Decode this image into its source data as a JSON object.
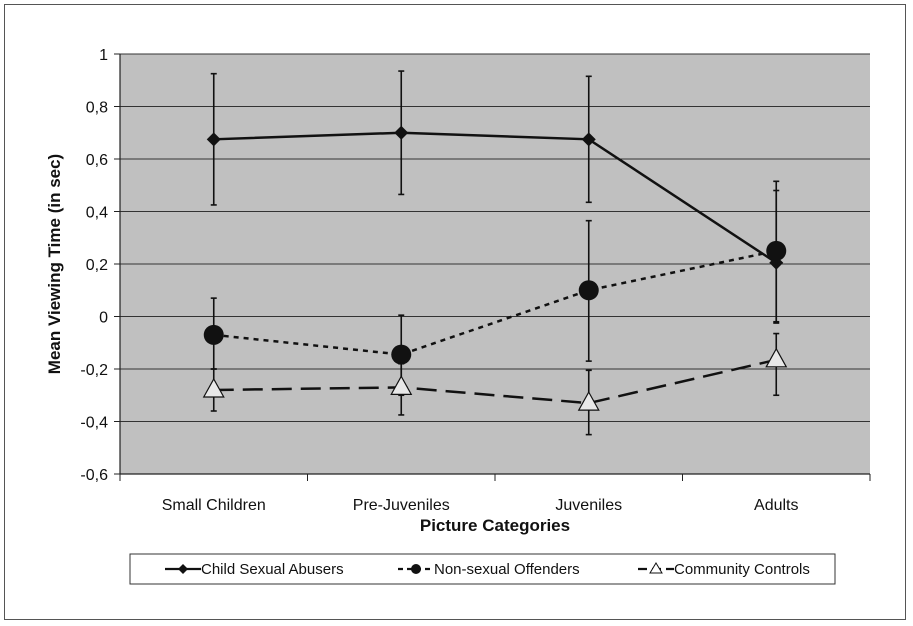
{
  "chart_data": {
    "type": "line",
    "title": "",
    "xlabel": "Picture Categories",
    "ylabel": "Mean Viewing Time (in sec)",
    "categories": [
      "Small Children",
      "Pre-Juveniles",
      "Juveniles",
      "Adults"
    ],
    "ylim": [
      -0.6,
      1
    ],
    "yticks": [
      {
        "value": 1,
        "label": "1"
      },
      {
        "value": 0.8,
        "label": "0,8"
      },
      {
        "value": 0.6,
        "label": "0,6"
      },
      {
        "value": 0.4,
        "label": "0,4"
      },
      {
        "value": 0.2,
        "label": "0,2"
      },
      {
        "value": 0,
        "label": "0"
      },
      {
        "value": -0.2,
        "label": "-0,2"
      },
      {
        "value": -0.4,
        "label": "-0,4"
      },
      {
        "value": -0.6,
        "label": "-0,6"
      }
    ],
    "grid": true,
    "legend_position": "bottom",
    "plot_background": "#c0c0c0",
    "series": [
      {
        "name": "Child Sexual Abusers",
        "style": "solid",
        "marker": "diamond",
        "values": [
          0.675,
          0.7,
          0.675,
          0.205
        ],
        "err_low": [
          0.425,
          0.465,
          0.435,
          -0.025
        ],
        "err_high": [
          0.925,
          0.935,
          0.915,
          0.48
        ]
      },
      {
        "name": "Non-sexual Offenders",
        "style": "dotted",
        "marker": "circle",
        "values": [
          -0.07,
          -0.145,
          0.1,
          0.25
        ],
        "err_low": [
          -0.2,
          -0.3,
          -0.17,
          -0.02
        ],
        "err_high": [
          0.07,
          0.005,
          0.365,
          0.515
        ]
      },
      {
        "name": "Community Controls",
        "style": "dashed",
        "marker": "triangle",
        "values": [
          -0.28,
          -0.27,
          -0.33,
          -0.165
        ],
        "err_low": [
          -0.36,
          -0.375,
          -0.45,
          -0.3
        ],
        "err_high": [
          -0.2,
          -0.18,
          -0.205,
          -0.065
        ]
      }
    ]
  }
}
